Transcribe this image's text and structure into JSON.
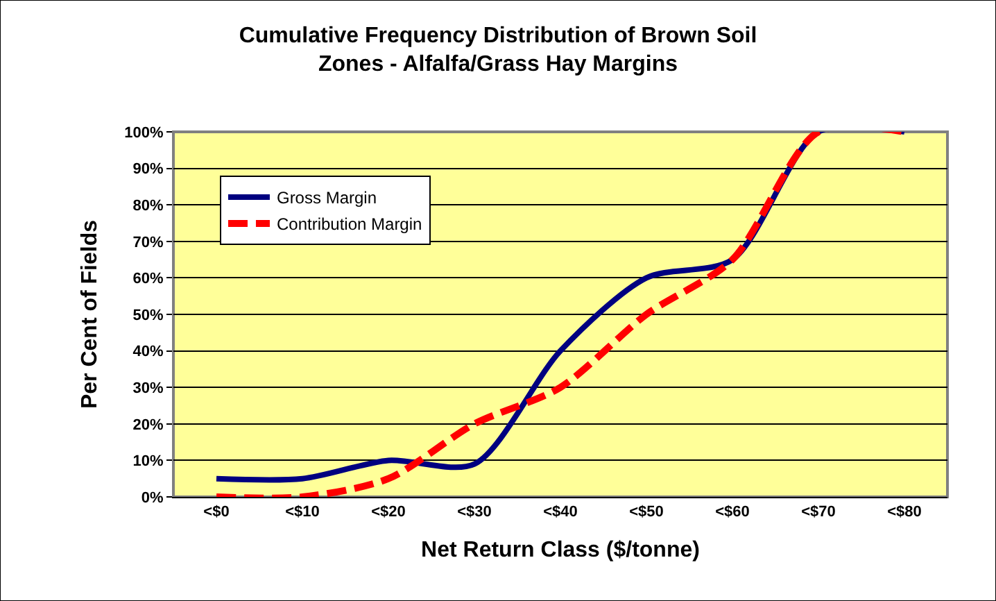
{
  "chart_data": {
    "type": "line",
    "title": "Cumulative Frequency Distribution of Brown Soil\nZones - Alfalfa/Grass Hay Margins",
    "xlabel": "Net Return Class ($/tonne)",
    "ylabel": "Per Cent of Fields",
    "categories": [
      "<$0",
      "<$10",
      "<$20",
      "<$30",
      "<$40",
      "<$50",
      "<$60",
      "<$70",
      "<$80"
    ],
    "series": [
      {
        "name": "Gross Margin",
        "color": "#000080",
        "line_style": "solid",
        "values": [
          5,
          5,
          10,
          9,
          40,
          60,
          65,
          100,
          100
        ]
      },
      {
        "name": "Contribution Margin",
        "color": "#ff0000",
        "line_style": "dashed",
        "values": [
          0,
          0,
          5,
          20,
          30,
          50,
          65,
          100,
          100
        ]
      }
    ],
    "ylim": [
      0,
      100
    ],
    "yticks": [
      {
        "value": 0,
        "label": "0%"
      },
      {
        "value": 10,
        "label": "10%"
      },
      {
        "value": 20,
        "label": "20%"
      },
      {
        "value": 30,
        "label": "30%"
      },
      {
        "value": 40,
        "label": "40%"
      },
      {
        "value": 50,
        "label": "50%"
      },
      {
        "value": 60,
        "label": "60%"
      },
      {
        "value": 70,
        "label": "70%"
      },
      {
        "value": 80,
        "label": "80%"
      },
      {
        "value": 90,
        "label": "90%"
      },
      {
        "value": 100,
        "label": "100%"
      }
    ],
    "grid": "y",
    "legend": "top left",
    "marker": "none"
  }
}
